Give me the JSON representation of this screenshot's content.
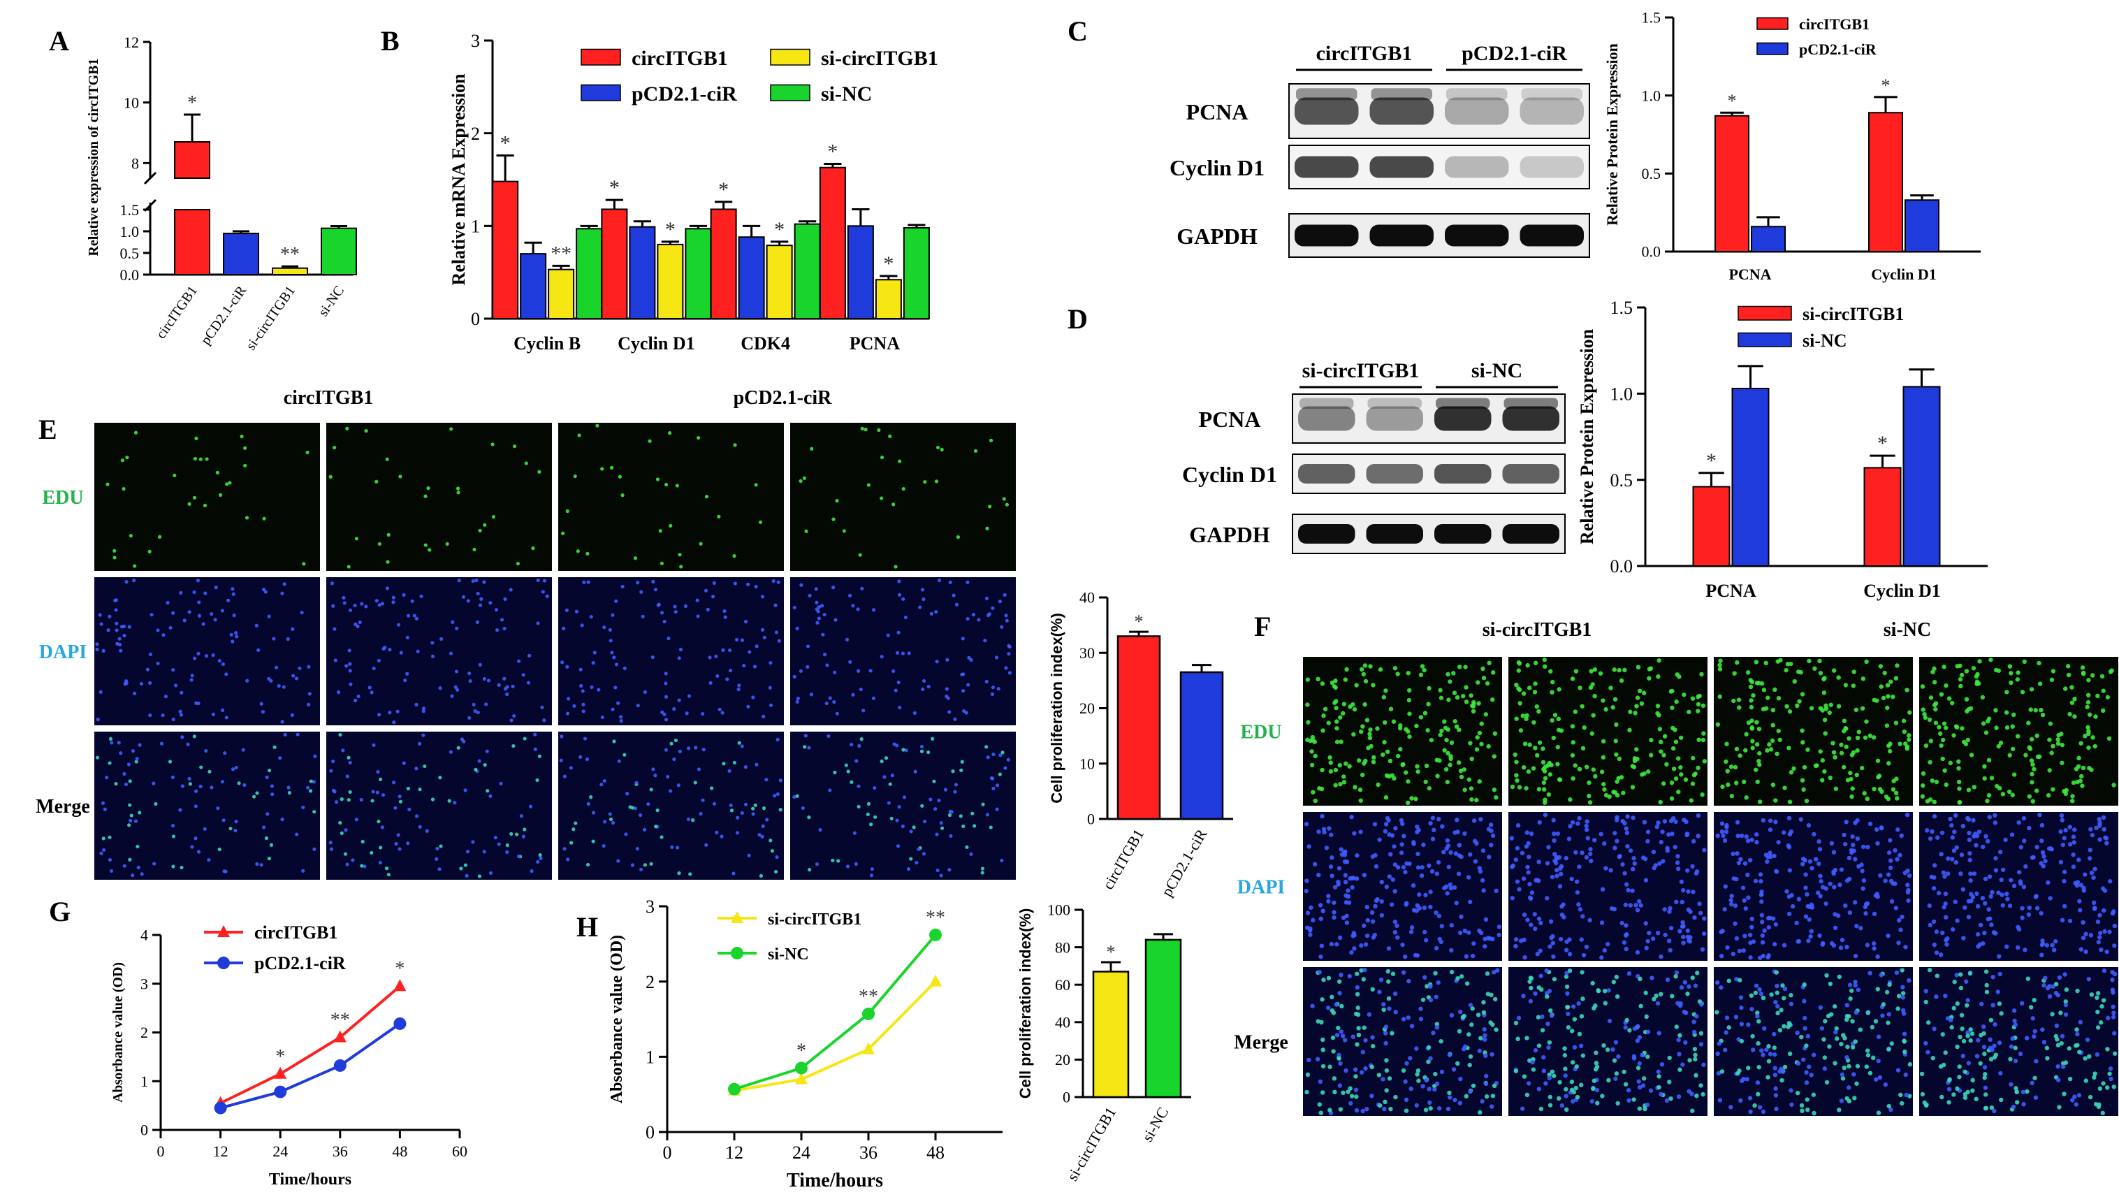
{
  "panels": {
    "A": {
      "letter": "A"
    },
    "B": {
      "letter": "B"
    },
    "C": {
      "letter": "C"
    },
    "D": {
      "letter": "D"
    },
    "E": {
      "letter": "E"
    },
    "F": {
      "letter": "F"
    },
    "G": {
      "letter": "G"
    },
    "H": {
      "letter": "H"
    }
  },
  "blots": {
    "C": {
      "headers": [
        "circITGB1",
        "pCD2.1-ciR"
      ],
      "rows": [
        "PCNA",
        "Cyclin D1",
        "GAPDH"
      ]
    },
    "D": {
      "headers": [
        "si-circITGB1",
        "si-NC"
      ],
      "rows": [
        "PCNA",
        "Cyclin D1",
        "GAPDH"
      ]
    }
  },
  "micro": {
    "E": {
      "headers": [
        "circITGB1",
        "pCD2.1-ciR"
      ],
      "rows": [
        "EDU",
        "DAPI",
        "Merge"
      ],
      "colors": [
        "#22b24c",
        "#28a8e0",
        "#000000"
      ]
    },
    "F": {
      "headers": [
        "si-circITGB1",
        "si-NC"
      ],
      "rows": [
        "EDU",
        "DAPI",
        "Merge"
      ],
      "colors": [
        "#22b24c",
        "#28a8e0",
        "#000000"
      ]
    }
  },
  "chart_data": [
    {
      "id": "A",
      "type": "bar",
      "ylabel": "Relative expression of circITGB1",
      "categories": [
        "circITGB1",
        "pCD2.1-ciR",
        "si-circITGB1",
        "si-NC"
      ],
      "values": [
        8.7,
        0.95,
        0.15,
        1.07
      ],
      "errors": [
        0.9,
        0.05,
        0.04,
        0.05
      ],
      "colors": [
        "#ff2020",
        "#1f3bdb",
        "#f5e614",
        "#19d42a"
      ],
      "sig": [
        "*",
        "",
        "**",
        ""
      ],
      "yticks_lower": [
        "0.0",
        "0.5",
        "1.0",
        "1.5"
      ],
      "yticks_upper": [
        "8",
        "10",
        "12"
      ]
    },
    {
      "id": "B",
      "type": "bar",
      "ylabel": "Relative mRNA Expression",
      "categories": [
        "Cyclin B",
        "Cyclin D1",
        "CDK4",
        "PCNA"
      ],
      "series": [
        {
          "name": "circITGB1",
          "color": "#ff2020",
          "values": [
            1.48,
            1.18,
            1.18,
            1.63
          ],
          "errors": [
            0.28,
            0.1,
            0.08,
            0.04
          ],
          "sig": [
            "*",
            "*",
            "*",
            "*"
          ]
        },
        {
          "name": "pCD2.1-ciR",
          "color": "#1f3bdb",
          "values": [
            0.7,
            0.99,
            0.88,
            1.0
          ],
          "errors": [
            0.12,
            0.06,
            0.12,
            0.18
          ],
          "sig": [
            "",
            "",
            "",
            ""
          ]
        },
        {
          "name": "si-circITGB1",
          "color": "#f5e614",
          "values": [
            0.53,
            0.8,
            0.79,
            0.42
          ],
          "errors": [
            0.04,
            0.03,
            0.04,
            0.04
          ],
          "sig": [
            "**",
            "*",
            "*",
            "*"
          ]
        },
        {
          "name": "si-NC",
          "color": "#19d42a",
          "values": [
            0.97,
            0.97,
            1.02,
            0.98
          ],
          "errors": [
            0.03,
            0.03,
            0.03,
            0.03
          ],
          "sig": [
            "",
            "",
            "",
            ""
          ]
        }
      ],
      "ylim": [
        0,
        3
      ],
      "yticks": [
        "0",
        "1",
        "2",
        "3"
      ]
    },
    {
      "id": "C",
      "type": "bar",
      "ylabel": "Relative Protein Expression",
      "categories": [
        "PCNA",
        "Cyclin D1"
      ],
      "series": [
        {
          "name": "circITGB1",
          "color": "#ff2020",
          "values": [
            0.87,
            0.89
          ],
          "errors": [
            0.02,
            0.1
          ],
          "sig": [
            "*",
            "*"
          ]
        },
        {
          "name": "pCD2.1-ciR",
          "color": "#1f3bdb",
          "values": [
            0.16,
            0.33
          ],
          "errors": [
            0.06,
            0.03
          ],
          "sig": [
            "",
            ""
          ]
        }
      ],
      "ylim": [
        0,
        1.5
      ],
      "yticks": [
        "0.0",
        "0.5",
        "1.0",
        "1.5"
      ]
    },
    {
      "id": "D",
      "type": "bar",
      "ylabel": "Relative Protein Expression",
      "categories": [
        "PCNA",
        "Cyclin D1"
      ],
      "series": [
        {
          "name": "si-circITGB1",
          "color": "#ff2020",
          "values": [
            0.46,
            0.57
          ],
          "errors": [
            0.08,
            0.07
          ],
          "sig": [
            "*",
            "*"
          ]
        },
        {
          "name": "si-NC",
          "color": "#1f3bdb",
          "values": [
            1.03,
            1.04
          ],
          "errors": [
            0.13,
            0.1
          ],
          "sig": [
            "",
            ""
          ]
        }
      ],
      "ylim": [
        0,
        1.5
      ],
      "yticks": [
        "0.0",
        "0.5",
        "1.0",
        "1.5"
      ]
    },
    {
      "id": "E-index",
      "type": "bar",
      "ylabel": "Cell proliferation index(%)",
      "categories": [
        "circITGB1",
        "pCD2.1-ciR"
      ],
      "values": [
        33,
        26.5
      ],
      "errors": [
        0.8,
        1.3
      ],
      "colors": [
        "#ff2020",
        "#1f3bdb"
      ],
      "sig": [
        "*",
        ""
      ],
      "ylim": [
        0,
        40
      ],
      "yticks": [
        "0",
        "10",
        "20",
        "30",
        "40"
      ]
    },
    {
      "id": "H-index",
      "type": "bar",
      "ylabel": "Cell proliferation index(%)",
      "categories": [
        "si-circITGB1",
        "si-NC"
      ],
      "values": [
        67,
        84
      ],
      "errors": [
        5,
        3
      ],
      "colors": [
        "#f5e614",
        "#19d42a"
      ],
      "sig": [
        "*",
        ""
      ],
      "ylim": [
        0,
        100
      ],
      "yticks": [
        "0",
        "20",
        "40",
        "60",
        "80",
        "100"
      ]
    },
    {
      "id": "G",
      "type": "line",
      "xlabel": "Time/hours",
      "ylabel": "Absorbance value (OD)",
      "x": [
        12,
        24,
        36,
        48
      ],
      "series": [
        {
          "name": "circITGB1",
          "color": "#ff2020",
          "marker": "triangle",
          "values": [
            0.55,
            1.15,
            1.9,
            2.95
          ],
          "sig": [
            "",
            "*",
            "**",
            "*"
          ]
        },
        {
          "name": "pCD2.1-ciR",
          "color": "#1f3bdb",
          "marker": "circle",
          "values": [
            0.45,
            0.78,
            1.32,
            2.18
          ],
          "sig": [
            "",
            "",
            "",
            ""
          ]
        }
      ],
      "xlim": [
        0,
        60
      ],
      "ylim": [
        0,
        4
      ],
      "xticks": [
        "0",
        "12",
        "24",
        "36",
        "48",
        "60"
      ],
      "yticks": [
        "0",
        "1",
        "2",
        "3",
        "4"
      ]
    },
    {
      "id": "H",
      "type": "line",
      "xlabel": "Time/hours",
      "ylabel": "Absorbance value (OD)",
      "x": [
        12,
        24,
        36,
        48
      ],
      "series": [
        {
          "name": "si-circITGB1",
          "color": "#f5e614",
          "marker": "triangle",
          "values": [
            0.55,
            0.7,
            1.1,
            2.0
          ],
          "sig": [
            "",
            "",
            "",
            ""
          ]
        },
        {
          "name": "si-NC",
          "color": "#19d42a",
          "marker": "circle",
          "values": [
            0.57,
            0.85,
            1.57,
            2.62
          ],
          "sig": [
            "",
            "*",
            "**",
            "**"
          ]
        }
      ],
      "xlim": [
        0,
        60
      ],
      "ylim": [
        0,
        3
      ],
      "xticks": [
        "0",
        "12",
        "24",
        "36",
        "48"
      ],
      "yticks": [
        "0",
        "1",
        "2",
        "3"
      ]
    }
  ]
}
